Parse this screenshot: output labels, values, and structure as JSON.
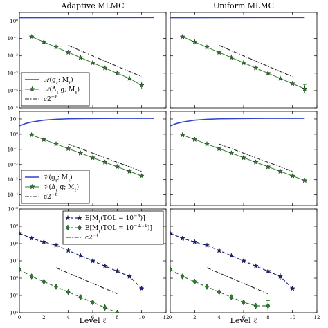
{
  "chart_data": {
    "type": "line",
    "columns": [
      {
        "title": "Adaptive MLMC"
      },
      {
        "title": "Uniform MLMC"
      }
    ],
    "xlabel": "Level ℓ",
    "xlim": [
      0,
      12
    ],
    "xticks": [
      0,
      2,
      4,
      6,
      8,
      10,
      12
    ],
    "xtick_labels": [
      "0",
      "2",
      "4",
      "6",
      "8",
      "10",
      "12"
    ],
    "colors": {
      "blue": "#3344cc",
      "green": "#2e7d2e",
      "navy": "#1a237e",
      "dark": "#222222"
    },
    "rows": [
      {
        "ylog": [
          -5,
          0.5
        ],
        "yticks": [
          0,
          -1,
          -2,
          -3,
          -4,
          -5
        ],
        "ytick_labels": [
          "10⁰",
          "10⁻¹",
          "10⁻²",
          "10⁻³",
          "10⁻⁴",
          "10⁻⁵"
        ],
        "legend": {
          "panel": 0,
          "location": "lower-left",
          "entries": [
            {
              "label": "𝒜(g_ℓ; M_ℓ)",
              "style": "solid-blue"
            },
            {
              "label": "𝒜(Δ_ℓ g; M_ℓ)",
              "style": "green-star"
            },
            {
              "label": "c2^{−ℓ}",
              "style": "dashdot"
            }
          ]
        },
        "panels": [
          {
            "series": [
              {
                "kind": "curve",
                "color": "blue",
                "x": [
                  0,
                  11
                ],
                "y": [
                  0.2,
                  0.21
                ]
              },
              {
                "kind": "markers",
                "color": "green",
                "marker": "star",
                "x": [
                  1,
                  2,
                  3,
                  4,
                  5,
                  6,
                  7,
                  8,
                  9,
                  10
                ],
                "y": [
                  -0.9,
                  -1.2,
                  -1.5,
                  -1.8,
                  -2.1,
                  -2.4,
                  -2.7,
                  -3.0,
                  -3.3,
                  -3.7
                ],
                "err": [
                  0,
                  0,
                  0,
                  0,
                  0,
                  0,
                  0,
                  0,
                  0,
                  0.2
                ]
              },
              {
                "kind": "reference",
                "color": "dark",
                "x": [
                  4,
                  10
                ],
                "y": [
                  -1.4,
                  -3.2
                ]
              }
            ]
          },
          {
            "series": [
              {
                "kind": "curve",
                "color": "blue",
                "x": [
                  0,
                  11
                ],
                "y": [
                  0.2,
                  0.21
                ]
              },
              {
                "kind": "markers",
                "color": "green",
                "marker": "star",
                "x": [
                  1,
                  2,
                  3,
                  4,
                  5,
                  6,
                  7,
                  8,
                  9,
                  10,
                  11
                ],
                "y": [
                  -0.9,
                  -1.2,
                  -1.5,
                  -1.8,
                  -2.1,
                  -2.4,
                  -2.7,
                  -3.0,
                  -3.3,
                  -3.6,
                  -3.9
                ],
                "err": [
                  0,
                  0,
                  0,
                  0,
                  0,
                  0,
                  0,
                  0,
                  0,
                  0,
                  0.25
                ]
              },
              {
                "kind": "reference",
                "color": "dark",
                "x": [
                  4,
                  10
                ],
                "y": [
                  -1.4,
                  -3.2
                ]
              }
            ]
          }
        ]
      },
      {
        "ylog": [
          -4.7,
          1.5
        ],
        "yticks": [
          1,
          0,
          -1,
          -2,
          -3,
          -4
        ],
        "ytick_labels": [
          "10¹",
          "10⁰",
          "10⁻¹",
          "10⁻²",
          "10⁻³",
          "10⁻⁴"
        ],
        "legend": {
          "panel": 0,
          "location": "lower-left",
          "entries": [
            {
              "label": "𝒱(g_ℓ; M_ℓ)",
              "style": "solid-blue"
            },
            {
              "label": "𝒱(Δ_ℓ g; M_ℓ)",
              "style": "green-star"
            },
            {
              "label": "c2^{−ℓ}",
              "style": "dashdot"
            }
          ]
        },
        "panels": [
          {
            "series": [
              {
                "kind": "curve",
                "color": "blue",
                "x": [
                  0,
                  0.5,
                  1,
                  2,
                  3,
                  4,
                  6,
                  8,
                  10,
                  11
                ],
                "y": [
                  0.55,
                  0.7,
                  0.8,
                  0.92,
                  0.98,
                  1.01,
                  1.03,
                  1.04,
                  1.04,
                  1.04
                ]
              },
              {
                "kind": "markers",
                "color": "green",
                "marker": "star",
                "x": [
                  1,
                  2,
                  3,
                  4,
                  5,
                  6,
                  7,
                  8,
                  9,
                  10
                ],
                "y": [
                  -0.05,
                  -0.35,
                  -0.65,
                  -0.95,
                  -1.25,
                  -1.55,
                  -1.85,
                  -2.15,
                  -2.45,
                  -2.75
                ],
                "err": [
                  0,
                  0,
                  0,
                  0,
                  0,
                  0,
                  0,
                  0,
                  0,
                  0
                ]
              },
              {
                "kind": "reference",
                "color": "dark",
                "x": [
                  4,
                  10
                ],
                "y": [
                  -0.65,
                  -2.45
                ]
              }
            ]
          },
          {
            "series": [
              {
                "kind": "curve",
                "color": "blue",
                "x": [
                  0,
                  0.5,
                  1,
                  2,
                  3,
                  4,
                  6,
                  8,
                  10,
                  11
                ],
                "y": [
                  0.55,
                  0.7,
                  0.8,
                  0.92,
                  0.98,
                  1.01,
                  1.03,
                  1.04,
                  1.04,
                  1.04
                ]
              },
              {
                "kind": "markers",
                "color": "green",
                "marker": "star",
                "x": [
                  1,
                  2,
                  3,
                  4,
                  5,
                  6,
                  7,
                  8,
                  9,
                  10,
                  11
                ],
                "y": [
                  -0.05,
                  -0.35,
                  -0.65,
                  -0.95,
                  -1.25,
                  -1.55,
                  -1.85,
                  -2.15,
                  -2.45,
                  -2.75,
                  -3.05
                ],
                "err": [
                  0,
                  0,
                  0,
                  0,
                  0,
                  0,
                  0,
                  0,
                  0,
                  0,
                  0
                ]
              },
              {
                "kind": "reference",
                "color": "dark",
                "x": [
                  4,
                  10
                ],
                "y": [
                  -0.65,
                  -2.45
                ]
              }
            ]
          }
        ]
      },
      {
        "ylog": [
          4,
          10
        ],
        "yticks": [
          10,
          9,
          8,
          7,
          6,
          5,
          4
        ],
        "ytick_labels": [
          "10¹⁰",
          "10⁹",
          "10⁸",
          "10⁷",
          "10⁶",
          "10⁵",
          "10⁴"
        ],
        "legend": {
          "panel": 0,
          "location": "upper-right",
          "entries": [
            {
              "label": "E[M_ℓ(TOL = 10^{−3})]",
              "style": "navy-dashed-star"
            },
            {
              "label": "E[M_ℓ(TOL = 10^{−2.11})]",
              "style": "green-dashed-diamond"
            },
            {
              "label": "c2^{−ℓ}",
              "style": "dashdot"
            }
          ]
        },
        "panels": [
          {
            "series": [
              {
                "kind": "markers",
                "color": "navy",
                "marker": "star",
                "dashed": true,
                "x": [
                  0,
                  1,
                  2,
                  3,
                  4,
                  5,
                  6,
                  7,
                  8,
                  9,
                  10
                ],
                "y": [
                  8.6,
                  8.3,
                  8.1,
                  7.9,
                  7.6,
                  7.3,
                  7.0,
                  6.7,
                  6.4,
                  6.1,
                  5.4
                ],
                "err": [
                  0,
                  0,
                  0,
                  0,
                  0,
                  0,
                  0,
                  0,
                  0,
                  0,
                  0
                ]
              },
              {
                "kind": "markers",
                "color": "green",
                "marker": "diamond",
                "dashed": true,
                "x": [
                  0,
                  1,
                  2,
                  3,
                  4,
                  5,
                  6,
                  7,
                  8
                ],
                "y": [
                  6.5,
                  6.1,
                  5.8,
                  5.5,
                  5.2,
                  4.9,
                  4.6,
                  4.3,
                  4.0
                ],
                "err": [
                  0,
                  0,
                  0,
                  0,
                  0,
                  0,
                  0,
                  0.2,
                  0
                ]
              },
              {
                "kind": "reference",
                "color": "dark",
                "x": [
                  3,
                  8
                ],
                "y": [
                  6.6,
                  5.1
                ]
              }
            ]
          },
          {
            "series": [
              {
                "kind": "markers",
                "color": "navy",
                "marker": "star",
                "dashed": true,
                "x": [
                  0,
                  1,
                  2,
                  3,
                  4,
                  5,
                  6,
                  7,
                  8,
                  9,
                  10
                ],
                "y": [
                  8.6,
                  8.3,
                  8.1,
                  7.9,
                  7.6,
                  7.3,
                  7.0,
                  6.7,
                  6.4,
                  6.1,
                  5.4
                ],
                "err": [
                  0,
                  0,
                  0,
                  0,
                  0,
                  0,
                  0,
                  0,
                  0,
                  0.2,
                  0
                ]
              },
              {
                "kind": "markers",
                "color": "green",
                "marker": "diamond",
                "dashed": true,
                "x": [
                  0,
                  1,
                  2,
                  3,
                  4,
                  5,
                  6,
                  7,
                  8
                ],
                "y": [
                  6.5,
                  6.1,
                  5.8,
                  5.5,
                  5.2,
                  4.9,
                  4.6,
                  4.4,
                  4.4
                ],
                "err": [
                  0,
                  0,
                  0,
                  0,
                  0,
                  0,
                  0,
                  0,
                  0.3
                ]
              },
              {
                "kind": "reference",
                "color": "dark",
                "x": [
                  3,
                  8
                ],
                "y": [
                  6.6,
                  5.1
                ]
              }
            ]
          }
        ]
      }
    ]
  }
}
